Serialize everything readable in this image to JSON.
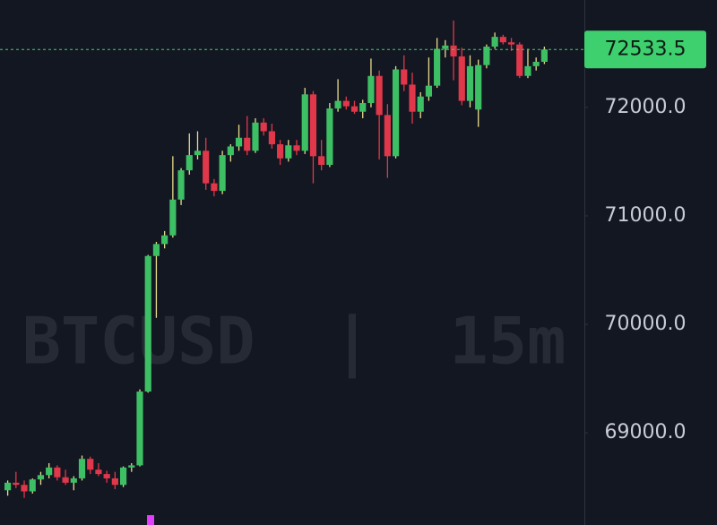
{
  "chart_data": {
    "type": "candlestick",
    "watermark": "BTCUSD  |  15m",
    "up_color": "#3dbf64",
    "down_color": "#e0384a",
    "up_wick_color": "#e8dc8c",
    "down_wick_color": "#e0384a",
    "last_price": 72533.5,
    "last_price_color": "#3ecf6e",
    "ylim": [
      68150,
      72990
    ],
    "yticks": [
      {
        "value": 69000,
        "label": "69000.0"
      },
      {
        "value": 70000,
        "label": "70000.0"
      },
      {
        "value": 71000,
        "label": "71000.0"
      },
      {
        "value": 72000,
        "label": "72000.0"
      }
    ],
    "open": [
      68470,
      68540,
      68520,
      68460,
      68570,
      68610,
      68680,
      68590,
      68540,
      68580,
      68760,
      68660,
      68620,
      68580,
      68520,
      68680,
      68700,
      69380,
      70630,
      70740,
      70820,
      71150,
      71420,
      71560,
      71600,
      71300,
      71230,
      71560,
      71640,
      71720,
      71600,
      71860,
      71780,
      71660,
      71530,
      71650,
      71600,
      72120,
      71550,
      71470,
      71990,
      72060,
      72010,
      71960,
      72040,
      72290,
      71930,
      71550,
      72350,
      72210,
      71960,
      72100,
      72200,
      72540,
      72570,
      72470,
      72060,
      71980,
      72390,
      72560,
      72650,
      72600,
      72580,
      72290,
      72380,
      72420
    ],
    "high": [
      68560,
      68640,
      68560,
      68580,
      68640,
      68720,
      68700,
      68660,
      68600,
      68790,
      68780,
      68720,
      68650,
      68640,
      68690,
      68720,
      69400,
      70640,
      70760,
      70860,
      71550,
      71440,
      71760,
      71780,
      71720,
      71340,
      71600,
      71660,
      71840,
      71920,
      71900,
      71900,
      71850,
      71700,
      71700,
      71700,
      72180,
      72150,
      71700,
      72040,
      72260,
      72100,
      72060,
      72070,
      72450,
      72340,
      72030,
      72380,
      72480,
      72320,
      72140,
      72460,
      72640,
      72620,
      72800,
      72550,
      72480,
      72440,
      72580,
      72690,
      72670,
      72640,
      72600,
      72540,
      72460,
      72560
    ],
    "low": [
      68420,
      68490,
      68400,
      68440,
      68520,
      68580,
      68560,
      68520,
      68470,
      68560,
      68620,
      68600,
      68540,
      68480,
      68500,
      68640,
      68690,
      69370,
      70060,
      70700,
      70800,
      71100,
      71380,
      71520,
      71240,
      71180,
      71200,
      71500,
      71600,
      71560,
      71580,
      71740,
      71620,
      71470,
      71500,
      71560,
      71570,
      71300,
      71420,
      71450,
      71960,
      71980,
      71940,
      71900,
      72000,
      71520,
      71350,
      71530,
      72150,
      71850,
      71900,
      72060,
      72180,
      72460,
      72250,
      72020,
      72000,
      71820,
      72360,
      72540,
      72580,
      72520,
      72270,
      72270,
      72340,
      72400
    ],
    "close": [
      68540,
      68520,
      68460,
      68570,
      68610,
      68680,
      68590,
      68540,
      68580,
      68760,
      68660,
      68620,
      68580,
      68520,
      68680,
      68700,
      69380,
      70630,
      70740,
      70820,
      71150,
      71420,
      71560,
      71600,
      71300,
      71230,
      71560,
      71640,
      71720,
      71600,
      71860,
      71780,
      71660,
      71530,
      71650,
      71600,
      72120,
      71550,
      71470,
      71990,
      72060,
      72010,
      71960,
      72040,
      72290,
      71930,
      71550,
      72350,
      72210,
      71960,
      72100,
      72200,
      72540,
      72570,
      72470,
      72060,
      72380,
      72390,
      72560,
      72650,
      72600,
      72580,
      72290,
      72380,
      72420,
      72533.5
    ]
  }
}
